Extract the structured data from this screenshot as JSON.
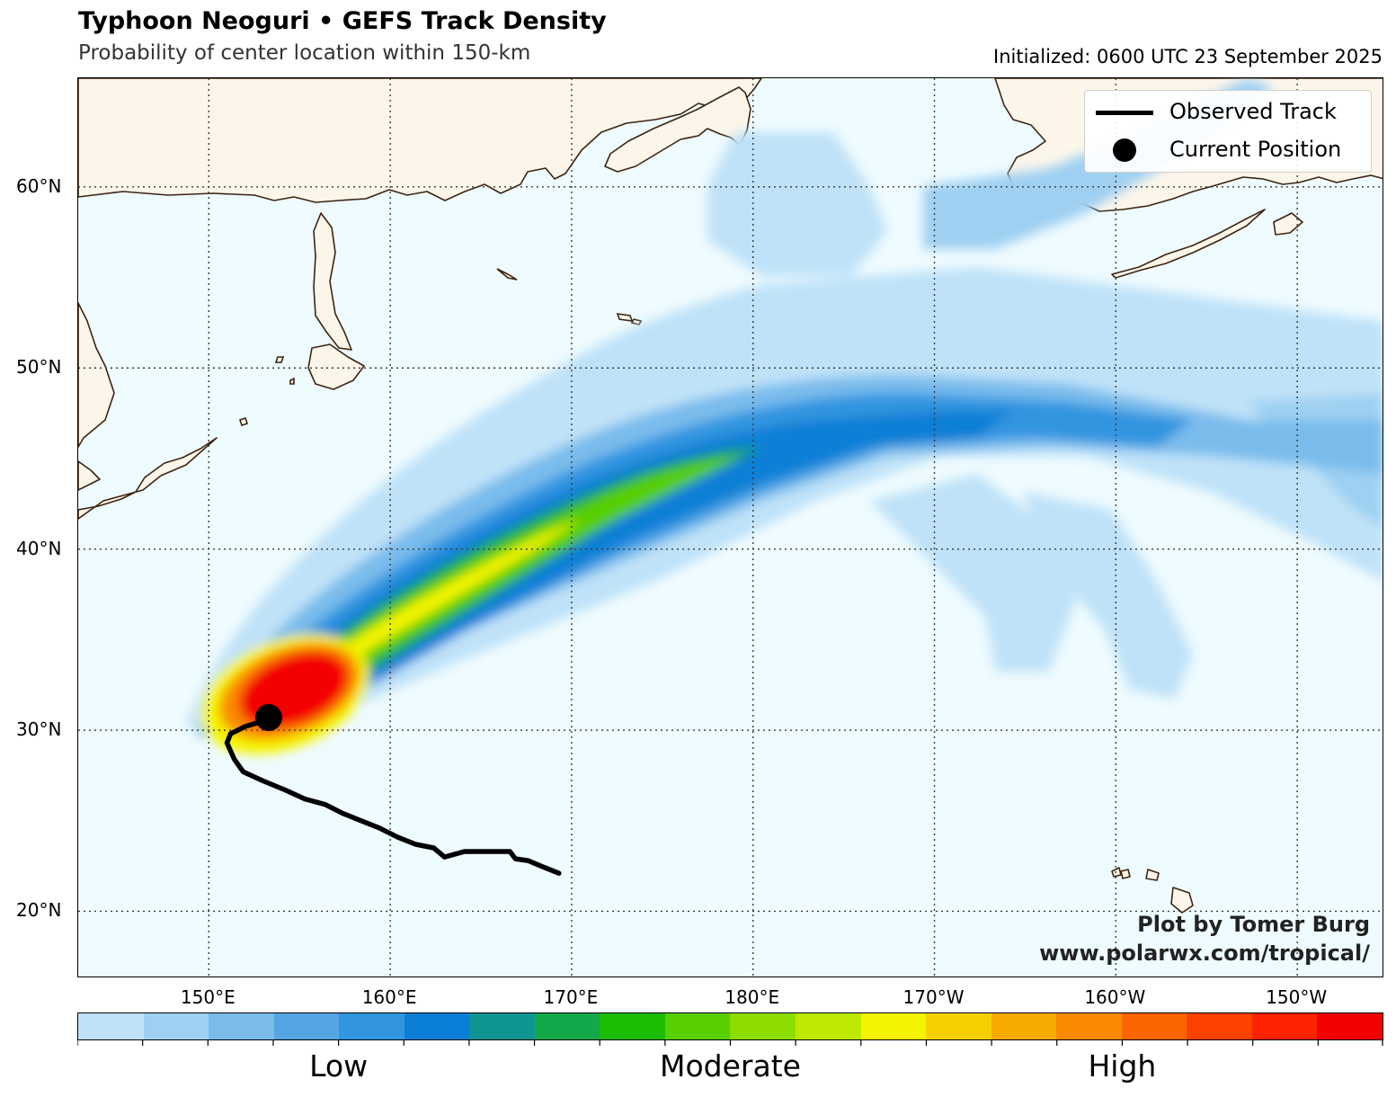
{
  "header": {
    "title": "Typhoon Neoguri • GEFS Track Density",
    "subtitle": "Probability of center location within 150-km",
    "initialized": "Initialized: 0600 UTC 23 September 2025"
  },
  "legend": {
    "observed_track": "Observed Track",
    "current_position": "Current Position"
  },
  "credit": {
    "line1": "Plot by Tomer Burg",
    "line2": "www.polarwx.com/tropical/"
  },
  "axes": {
    "lat_labels": [
      "60°N",
      "50°N",
      "40°N",
      "30°N",
      "20°N"
    ],
    "lat_values": [
      60,
      50,
      40,
      30,
      20
    ],
    "lon_labels": [
      "150°E",
      "160°E",
      "170°E",
      "180°E",
      "170°W",
      "160°W",
      "150°W"
    ],
    "lon_values": [
      150,
      160,
      170,
      180,
      190,
      200,
      210
    ],
    "lon_range": [
      142.8,
      214.8
    ],
    "lat_range": [
      16.3,
      66
    ]
  },
  "colorbar": {
    "colors": [
      "#bfe2f8",
      "#9fd0f2",
      "#79bcec",
      "#55a5e2",
      "#3195e0",
      "#0b7fd6",
      "#0f9693",
      "#13a94a",
      "#1cbd04",
      "#57cf00",
      "#8edd00",
      "#bde800",
      "#f4f400",
      "#f7d000",
      "#f7aa00",
      "#fa8a00",
      "#fb6500",
      "#fd4200",
      "#fd2200",
      "#f30000"
    ],
    "labels": [
      "Low",
      "Moderate",
      "High"
    ],
    "label_positions": [
      4,
      10,
      16
    ]
  },
  "map": {
    "ocean_color": "#eefbff",
    "land_color": "#fcf6ea",
    "coast_color": "#3d2410",
    "observed_track": [
      [
        169.3,
        22.1
      ],
      [
        168.3,
        22.5
      ],
      [
        167.6,
        22.8
      ],
      [
        166.9,
        22.9
      ],
      [
        166.6,
        23.3
      ],
      [
        165.9,
        23.3
      ],
      [
        164.9,
        23.3
      ],
      [
        164.1,
        23.3
      ],
      [
        163.0,
        23.0
      ],
      [
        162.4,
        23.5
      ],
      [
        161.4,
        23.7
      ],
      [
        160.4,
        24.1
      ],
      [
        159.4,
        24.6
      ],
      [
        158.4,
        25.0
      ],
      [
        157.4,
        25.4
      ],
      [
        156.4,
        25.9
      ],
      [
        155.3,
        26.2
      ],
      [
        154.2,
        26.7
      ],
      [
        153.0,
        27.2
      ],
      [
        151.9,
        27.7
      ],
      [
        151.4,
        28.4
      ],
      [
        151.0,
        29.3
      ],
      [
        151.2,
        29.8
      ],
      [
        152.0,
        30.2
      ],
      [
        153.3,
        30.6
      ]
    ],
    "current_position": [
      153.3,
      30.7
    ]
  }
}
